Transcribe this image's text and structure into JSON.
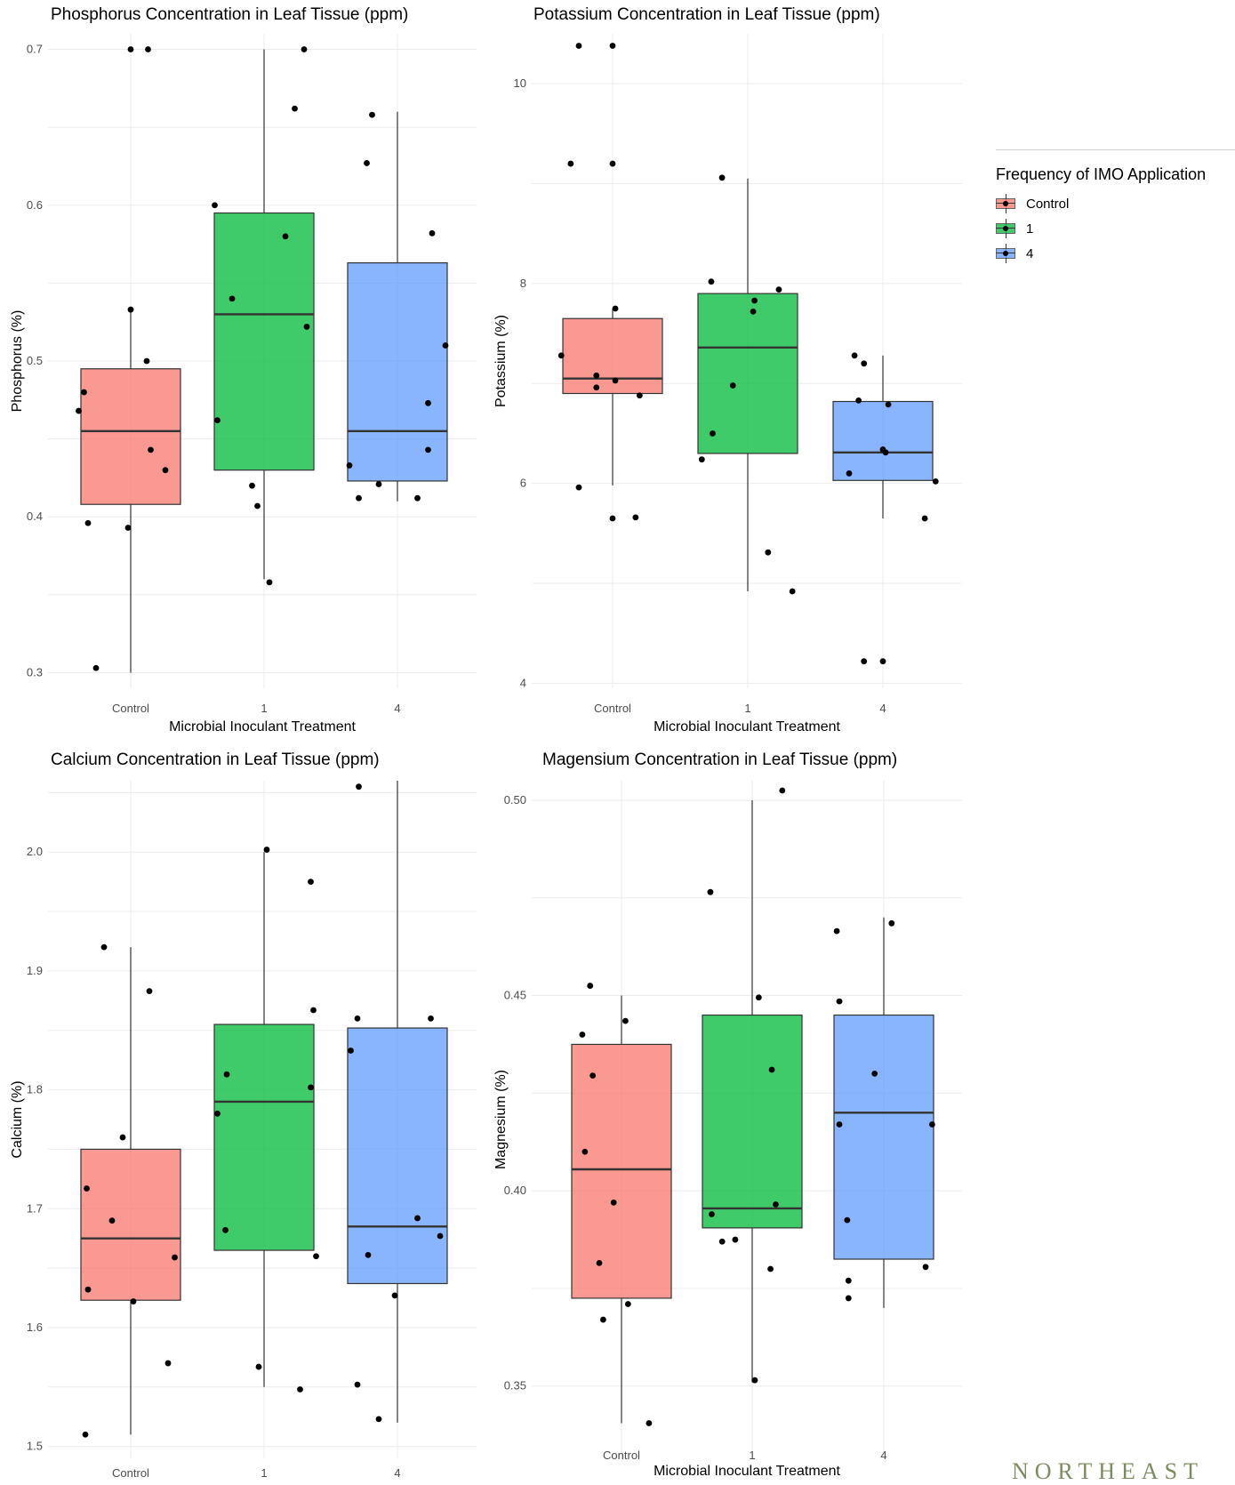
{
  "legend": {
    "title": "Frequency of IMO Application",
    "items": [
      {
        "label": "Control",
        "color": "#F8766D"
      },
      {
        "label": "1",
        "color": "#00BA38"
      },
      {
        "label": "4",
        "color": "#619CFF"
      }
    ]
  },
  "watermark": "NORTHEAST",
  "chart_data": [
    {
      "type": "box",
      "title": "Phosphorus Concentration in Leaf Tissue (ppm)",
      "xlabel": "Microbial Inoculant Treatment",
      "ylabel": "Phosphorus (%)",
      "categories": [
        "Control",
        "1",
        "4"
      ],
      "ylim": [
        0.29,
        0.71
      ],
      "yticks": [
        0.3,
        0.4,
        0.5,
        0.6,
        0.7
      ],
      "tick_decimals": 1,
      "grid": true,
      "boxes": [
        {
          "name": "Control",
          "min": 0.3,
          "q1": 0.408,
          "median": 0.455,
          "q3": 0.495,
          "max": 0.533
        },
        {
          "name": "1",
          "min": 0.36,
          "q1": 0.43,
          "median": 0.53,
          "q3": 0.595,
          "max": 0.7
        },
        {
          "name": "4",
          "min": 0.41,
          "q1": 0.423,
          "median": 0.455,
          "q3": 0.563,
          "max": 0.66
        }
      ],
      "points": [
        [
          {
            "x": -0.39,
            "y": 0.468
          },
          {
            "x": -0.35,
            "y": 0.48
          },
          {
            "x": -0.32,
            "y": 0.396
          },
          {
            "x": -0.26,
            "y": 0.303
          },
          {
            "x": -0.02,
            "y": 0.393
          },
          {
            "x": 0.0,
            "y": 0.533
          },
          {
            "x": 0.0,
            "y": 0.7
          },
          {
            "x": 0.13,
            "y": 0.7
          },
          {
            "x": 0.12,
            "y": 0.5
          },
          {
            "x": 0.15,
            "y": 0.443
          },
          {
            "x": 0.26,
            "y": 0.43
          }
        ],
        [
          {
            "x": -0.37,
            "y": 0.6
          },
          {
            "x": -0.35,
            "y": 0.462
          },
          {
            "x": -0.24,
            "y": 0.54
          },
          {
            "x": -0.09,
            "y": 0.42
          },
          {
            "x": -0.05,
            "y": 0.407
          },
          {
            "x": 0.04,
            "y": 0.358
          },
          {
            "x": 0.16,
            "y": 0.58
          },
          {
            "x": 0.23,
            "y": 0.662
          },
          {
            "x": 0.3,
            "y": 0.7
          },
          {
            "x": 0.32,
            "y": 0.522
          }
        ],
        [
          {
            "x": -0.36,
            "y": 0.433
          },
          {
            "x": -0.29,
            "y": 0.412
          },
          {
            "x": -0.23,
            "y": 0.627
          },
          {
            "x": -0.19,
            "y": 0.658
          },
          {
            "x": -0.14,
            "y": 0.421
          },
          {
            "x": 0.15,
            "y": 0.412
          },
          {
            "x": 0.23,
            "y": 0.473
          },
          {
            "x": 0.23,
            "y": 0.443
          },
          {
            "x": 0.26,
            "y": 0.582
          },
          {
            "x": 0.36,
            "y": 0.51
          }
        ]
      ]
    },
    {
      "type": "box",
      "title": "Potassium Concentration in Leaf Tissue (ppm)",
      "xlabel": "Microbial Inoculant Treatment",
      "ylabel": "Potassium (%)",
      "categories": [
        "Control",
        "1",
        "4"
      ],
      "ylim": [
        3.95,
        10.5
      ],
      "yticks": [
        4,
        6,
        8,
        10
      ],
      "tick_decimals": 0,
      "grid": true,
      "boxes": [
        {
          "name": "Control",
          "min": 5.98,
          "q1": 6.9,
          "median": 7.05,
          "q3": 7.65,
          "max": 7.75
        },
        {
          "name": "1",
          "min": 4.92,
          "q1": 6.3,
          "median": 7.36,
          "q3": 7.9,
          "max": 9.05
        },
        {
          "name": "4",
          "min": 5.65,
          "q1": 6.03,
          "median": 6.31,
          "q3": 6.82,
          "max": 7.28
        }
      ],
      "points": [
        [
          {
            "x": -0.38,
            "y": 7.28
          },
          {
            "x": -0.31,
            "y": 9.2
          },
          {
            "x": -0.25,
            "y": 10.38
          },
          {
            "x": -0.25,
            "y": 5.96
          },
          {
            "x": -0.12,
            "y": 6.96
          },
          {
            "x": -0.12,
            "y": 7.08
          },
          {
            "x": 0.0,
            "y": 5.65
          },
          {
            "x": 0.0,
            "y": 9.2
          },
          {
            "x": 0.0,
            "y": 10.38
          },
          {
            "x": 0.02,
            "y": 7.75
          },
          {
            "x": 0.02,
            "y": 7.03
          },
          {
            "x": 0.17,
            "y": 5.66
          },
          {
            "x": 0.2,
            "y": 6.88
          }
        ],
        [
          {
            "x": -0.34,
            "y": 6.24
          },
          {
            "x": -0.27,
            "y": 8.02
          },
          {
            "x": -0.26,
            "y": 6.5
          },
          {
            "x": -0.19,
            "y": 9.06
          },
          {
            "x": -0.11,
            "y": 6.98
          },
          {
            "x": 0.04,
            "y": 7.72
          },
          {
            "x": 0.05,
            "y": 7.83
          },
          {
            "x": 0.15,
            "y": 5.31
          },
          {
            "x": 0.23,
            "y": 7.94
          },
          {
            "x": 0.33,
            "y": 4.92
          }
        ],
        [
          {
            "x": -0.25,
            "y": 6.1
          },
          {
            "x": -0.21,
            "y": 7.28
          },
          {
            "x": -0.18,
            "y": 6.83
          },
          {
            "x": -0.14,
            "y": 7.2
          },
          {
            "x": -0.14,
            "y": 4.22
          },
          {
            "x": 0.0,
            "y": 4.22
          },
          {
            "x": 0.0,
            "y": 6.34
          },
          {
            "x": 0.02,
            "y": 6.31
          },
          {
            "x": 0.04,
            "y": 6.79
          },
          {
            "x": 0.31,
            "y": 5.65
          },
          {
            "x": 0.39,
            "y": 6.02
          }
        ]
      ]
    },
    {
      "type": "box",
      "title": "Calcium Concentration in Leaf Tissue (ppm)",
      "xlabel": "",
      "ylabel": "Calcium (%)",
      "categories": [
        "Control",
        "1",
        "4"
      ],
      "ylim": [
        1.49,
        2.06
      ],
      "yticks": [
        1.5,
        1.6,
        1.7,
        1.8,
        1.9,
        2.0
      ],
      "tick_decimals": 1,
      "grid": true,
      "boxes": [
        {
          "name": "Control",
          "min": 1.51,
          "q1": 1.623,
          "median": 1.675,
          "q3": 1.75,
          "max": 1.92
        },
        {
          "name": "1",
          "min": 1.55,
          "q1": 1.665,
          "median": 1.79,
          "q3": 1.855,
          "max": 2.0
        },
        {
          "name": "4",
          "min": 1.52,
          "q1": 1.637,
          "median": 1.685,
          "q3": 1.852,
          "max": 2.06
        }
      ],
      "points": [
        [
          {
            "x": -0.34,
            "y": 1.51
          },
          {
            "x": -0.33,
            "y": 1.717
          },
          {
            "x": -0.32,
            "y": 1.632
          },
          {
            "x": -0.2,
            "y": 1.92
          },
          {
            "x": -0.14,
            "y": 1.69
          },
          {
            "x": -0.06,
            "y": 1.76
          },
          {
            "x": 0.02,
            "y": 1.622
          },
          {
            "x": 0.14,
            "y": 1.883
          },
          {
            "x": 0.28,
            "y": 1.57
          },
          {
            "x": 0.33,
            "y": 1.659
          }
        ],
        [
          {
            "x": -0.35,
            "y": 1.78
          },
          {
            "x": -0.29,
            "y": 1.682
          },
          {
            "x": -0.28,
            "y": 1.813
          },
          {
            "x": -0.04,
            "y": 1.567
          },
          {
            "x": 0.02,
            "y": 2.002
          },
          {
            "x": 0.27,
            "y": 1.548
          },
          {
            "x": 0.35,
            "y": 1.975
          },
          {
            "x": 0.35,
            "y": 1.802
          },
          {
            "x": 0.37,
            "y": 1.867
          },
          {
            "x": 0.39,
            "y": 1.66
          }
        ],
        [
          {
            "x": -0.35,
            "y": 1.833
          },
          {
            "x": -0.3,
            "y": 1.552
          },
          {
            "x": -0.3,
            "y": 1.86
          },
          {
            "x": -0.29,
            "y": 2.055
          },
          {
            "x": -0.22,
            "y": 1.661
          },
          {
            "x": -0.14,
            "y": 1.523
          },
          {
            "x": -0.02,
            "y": 1.627
          },
          {
            "x": 0.15,
            "y": 1.692
          },
          {
            "x": 0.25,
            "y": 1.86
          },
          {
            "x": 0.32,
            "y": 1.677
          }
        ]
      ]
    },
    {
      "type": "box",
      "title": "Magensium Concentration in Leaf Tissue (ppm)",
      "xlabel": "Microbial Inoculant Treatment",
      "ylabel": "Magnesium (%)",
      "categories": [
        "Control",
        "1",
        "4"
      ],
      "ylim": [
        0.3315,
        0.505
      ],
      "yticks": [
        0.35,
        0.4,
        0.45,
        0.5
      ],
      "tick_decimals": 2,
      "grid": true,
      "boxes": [
        {
          "name": "Control",
          "min": 0.3405,
          "q1": 0.3725,
          "median": 0.4055,
          "q3": 0.4375,
          "max": 0.45
        },
        {
          "name": "1",
          "min": 0.351,
          "q1": 0.3905,
          "median": 0.3955,
          "q3": 0.445,
          "max": 0.5
        },
        {
          "name": "4",
          "min": 0.37,
          "q1": 0.3825,
          "median": 0.42,
          "q3": 0.445,
          "max": 0.47
        }
      ],
      "points": [
        [
          {
            "x": -0.3,
            "y": 0.44
          },
          {
            "x": -0.28,
            "y": 0.41
          },
          {
            "x": -0.24,
            "y": 0.4525
          },
          {
            "x": -0.22,
            "y": 0.4295
          },
          {
            "x": -0.17,
            "y": 0.3815
          },
          {
            "x": -0.14,
            "y": 0.367
          },
          {
            "x": -0.06,
            "y": 0.397
          },
          {
            "x": 0.03,
            "y": 0.4435
          },
          {
            "x": 0.05,
            "y": 0.371
          },
          {
            "x": 0.21,
            "y": 0.3405
          }
        ],
        [
          {
            "x": -0.32,
            "y": 0.4765
          },
          {
            "x": -0.31,
            "y": 0.394
          },
          {
            "x": -0.23,
            "y": 0.387
          },
          {
            "x": -0.13,
            "y": 0.3875
          },
          {
            "x": 0.02,
            "y": 0.3515
          },
          {
            "x": 0.05,
            "y": 0.4495
          },
          {
            "x": 0.14,
            "y": 0.38
          },
          {
            "x": 0.15,
            "y": 0.431
          },
          {
            "x": 0.18,
            "y": 0.3965
          },
          {
            "x": 0.23,
            "y": 0.5025
          }
        ],
        [
          {
            "x": -0.36,
            "y": 0.4665
          },
          {
            "x": -0.34,
            "y": 0.4485
          },
          {
            "x": -0.34,
            "y": 0.417
          },
          {
            "x": -0.28,
            "y": 0.3925
          },
          {
            "x": -0.27,
            "y": 0.377
          },
          {
            "x": -0.27,
            "y": 0.3725
          },
          {
            "x": -0.07,
            "y": 0.43
          },
          {
            "x": 0.06,
            "y": 0.4685
          },
          {
            "x": 0.32,
            "y": 0.3805
          },
          {
            "x": 0.37,
            "y": 0.417
          }
        ]
      ]
    }
  ]
}
